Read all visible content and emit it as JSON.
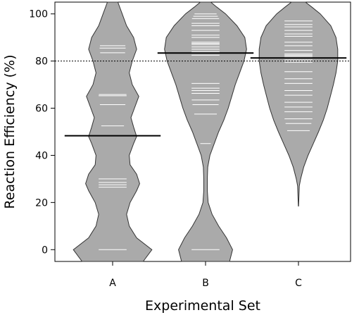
{
  "chart_data": {
    "type": "beanplot",
    "title": "",
    "xlabel": "Experimental Set",
    "ylabel": "Reaction Efficiency (%)",
    "ylim": [
      -5,
      105
    ],
    "yticks": [
      0,
      20,
      40,
      60,
      80,
      100
    ],
    "categories": [
      "A",
      "B",
      "C"
    ],
    "reference_line": {
      "y": 80,
      "style": "dotted"
    },
    "grid": false,
    "legend": "none",
    "colors": {
      "bean_fill": "#aaaaaa",
      "bean_stroke": "#333333",
      "obs_line": "#ffffff",
      "mean_line": "#000000",
      "reference_line": "#000000"
    },
    "series": [
      {
        "category": "A",
        "mean": 48.3,
        "observations": [
          0,
          26.5,
          27.5,
          28.5,
          30,
          48.3,
          52.5,
          61.5,
          65.3,
          65.8,
          83.5,
          85.5,
          86.5
        ],
        "density": [
          [
            -5,
            0.7
          ],
          [
            0,
            0.9
          ],
          [
            5,
            0.55
          ],
          [
            10,
            0.38
          ],
          [
            15,
            0.32
          ],
          [
            20,
            0.4
          ],
          [
            25,
            0.55
          ],
          [
            28,
            0.62
          ],
          [
            32,
            0.55
          ],
          [
            36,
            0.4
          ],
          [
            40,
            0.38
          ],
          [
            45,
            0.48
          ],
          [
            48,
            0.55
          ],
          [
            52,
            0.48
          ],
          [
            56,
            0.42
          ],
          [
            60,
            0.5
          ],
          [
            65,
            0.6
          ],
          [
            70,
            0.45
          ],
          [
            75,
            0.38
          ],
          [
            80,
            0.45
          ],
          [
            85,
            0.55
          ],
          [
            90,
            0.48
          ],
          [
            95,
            0.32
          ],
          [
            100,
            0.22
          ],
          [
            105,
            0.12
          ]
        ]
      },
      {
        "category": "B",
        "mean": 83.4,
        "observations": [
          0,
          45,
          57.5,
          61.5,
          63.5,
          66.3,
          67.5,
          68.5,
          70.5,
          82.5,
          83.5,
          84,
          85,
          86,
          87,
          87.5,
          88,
          90,
          91,
          93,
          95,
          96,
          98,
          99,
          100
        ],
        "density": [
          [
            -5,
            0.55
          ],
          [
            0,
            0.62
          ],
          [
            5,
            0.48
          ],
          [
            10,
            0.3
          ],
          [
            15,
            0.15
          ],
          [
            20,
            0.06
          ],
          [
            25,
            0.04
          ],
          [
            30,
            0.04
          ],
          [
            35,
            0.05
          ],
          [
            40,
            0.1
          ],
          [
            45,
            0.2
          ],
          [
            50,
            0.3
          ],
          [
            55,
            0.42
          ],
          [
            60,
            0.52
          ],
          [
            65,
            0.6
          ],
          [
            70,
            0.68
          ],
          [
            75,
            0.78
          ],
          [
            80,
            0.88
          ],
          [
            85,
            0.94
          ],
          [
            90,
            0.9
          ],
          [
            95,
            0.72
          ],
          [
            100,
            0.46
          ],
          [
            103,
            0.25
          ],
          [
            105,
            0.12
          ]
        ]
      },
      {
        "category": "C",
        "mean": 81.3,
        "observations": [
          50.5,
          53.5,
          55.5,
          58.5,
          60.5,
          62.5,
          65.5,
          67.5,
          70.5,
          72.5,
          75.5,
          79.5,
          80.5,
          81.5,
          82,
          82.5,
          83,
          84.5,
          86.5,
          88,
          90.5,
          91.5,
          93,
          94.5,
          95.5,
          97
        ],
        "density": [
          [
            18.5,
            0.004
          ],
          [
            22,
            0.01
          ],
          [
            27,
            0.02
          ],
          [
            30,
            0.05
          ],
          [
            35,
            0.12
          ],
          [
            40,
            0.22
          ],
          [
            45,
            0.34
          ],
          [
            50,
            0.46
          ],
          [
            55,
            0.57
          ],
          [
            60,
            0.66
          ],
          [
            65,
            0.73
          ],
          [
            70,
            0.8
          ],
          [
            75,
            0.86
          ],
          [
            80,
            0.9
          ],
          [
            85,
            0.9
          ],
          [
            90,
            0.86
          ],
          [
            95,
            0.74
          ],
          [
            100,
            0.5
          ],
          [
            103,
            0.3
          ],
          [
            105,
            0.16
          ]
        ]
      }
    ]
  }
}
